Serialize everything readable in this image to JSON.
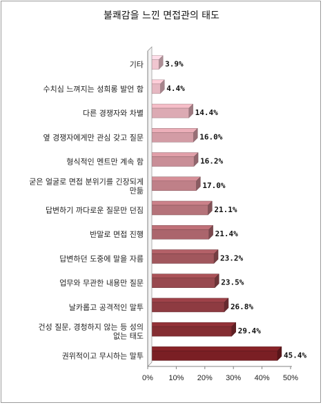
{
  "chart_data": {
    "type": "bar",
    "orientation": "horizontal",
    "title": "불쾌감을 느낀 면접관의 태도",
    "categories": [
      "기타",
      "수치심 느껴지는 성희롱 발언 함",
      "다른 경쟁자와 차별",
      "옆 경쟁자에게만 관심 갖고 질문",
      "형식적인 멘트만 계속 함",
      "굳은 얼굴로 면접 분위기를 긴장되게 만듦",
      "답변하기 까다로운 질문만 던짐",
      "반말로 면접 진행",
      "답변하던 도중에 말을 자름",
      "업무와 무관한 내용만 질문",
      "날카롭고 공격적인 말투",
      "건성 질문, 경청하지 않는 등 성의 없는 태도",
      "권위적이고 무시하는 말투"
    ],
    "category_lines": [
      [
        "기타"
      ],
      [
        "수치심 느껴지는 성희롱 발언 함"
      ],
      [
        "다른 경쟁자와 차별"
      ],
      [
        "옆 경쟁자에게만 관심 갖고 질문"
      ],
      [
        "형식적인 멘트만 계속 함"
      ],
      [
        "굳은 얼굴로 면접 분위기를 긴장되게",
        "만듦"
      ],
      [
        "답변하기 까다로운 질문만 던짐"
      ],
      [
        "반말로 면접 진행"
      ],
      [
        "답변하던 도중에 말을 자름"
      ],
      [
        "업무와 무관한 내용만 질문"
      ],
      [
        "날카롭고 공격적인 말투"
      ],
      [
        "건성 질문, 경청하지 않는 등 성의",
        "없는 태도"
      ],
      [
        "권위적이고 무시하는 말투"
      ]
    ],
    "values": [
      3.9,
      4.4,
      14.4,
      16.0,
      16.2,
      17.0,
      21.1,
      21.4,
      23.2,
      23.5,
      26.8,
      29.4,
      45.4
    ],
    "value_labels": [
      "3.9%",
      "4.4%",
      "14.4%",
      "16.0%",
      "16.2%",
      "17.0%",
      "21.1%",
      "21.4%",
      "23.2%",
      "23.5%",
      "26.8%",
      "29.4%",
      "45.4%"
    ],
    "xlim": [
      0,
      50
    ],
    "xticks": [
      0,
      10,
      20,
      30,
      40,
      50
    ],
    "xtick_labels": [
      "0%",
      "10%",
      "20%",
      "30%",
      "40%",
      "50%"
    ],
    "grid": false,
    "legend": "none",
    "bar_style": "3d",
    "colors": {
      "light": "#f0c6d0",
      "dark": "#7a1f24",
      "axis": "#808080"
    }
  }
}
